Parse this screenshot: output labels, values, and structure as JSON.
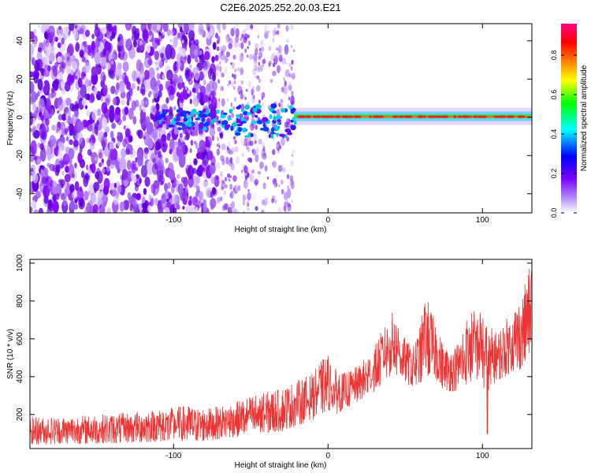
{
  "title": "C2E6.2025.252.20.03.E21",
  "chart_data": [
    {
      "type": "heatmap",
      "title": "C2E6.2025.252.20.03.E21",
      "xlabel": "Height of straight line (km)",
      "ylabel": "Frequency (Hz)",
      "xlim": [
        -193,
        132
      ],
      "ylim": [
        -50,
        49
      ],
      "x_ticks": [
        -100,
        0,
        100
      ],
      "x_tick_labels": [
        "-100",
        "0",
        "100"
      ],
      "y_ticks": [
        -40,
        -20,
        0,
        20,
        40
      ],
      "y_tick_labels": [
        "-40",
        "-20",
        "0",
        "20",
        "40"
      ],
      "colorbar": {
        "label": "Normalized spectral amplitude",
        "range": [
          0.0,
          0.96
        ],
        "ticks": [
          0.0,
          0.2,
          0.4,
          0.6,
          0.8
        ],
        "tick_labels": [
          "0.0",
          "0.2",
          "0.4",
          "0.6",
          "0.8"
        ],
        "colors": [
          "#ffffff",
          "#8000ff",
          "#0000ff",
          "#00ffff",
          "#00ff00",
          "#ffff00",
          "#ff8000",
          "#ff0000",
          "#ff00a0"
        ]
      },
      "regions": [
        {
          "x0": -193,
          "x1": -72,
          "f0": -50,
          "f1": 49,
          "amplitude": 0.12,
          "desc": "dense broadband noise"
        },
        {
          "x0": -72,
          "x1": -22,
          "f0": -50,
          "f1": 49,
          "amplitude": 0.06,
          "desc": "sparse broadband noise"
        },
        {
          "x0": -22,
          "x1": 132,
          "f0": -2,
          "f1": 3,
          "amplitude": 0.55,
          "desc": "narrow signal band"
        },
        {
          "x0": -20,
          "x1": 132,
          "f0": 0,
          "f1": 0.5,
          "amplitude": 0.9,
          "desc": "peak line near 0 Hz"
        }
      ]
    },
    {
      "type": "line",
      "xlabel": "Height of straight line (km)",
      "ylabel": "SNR (10 * v/v)",
      "xlim": [
        -193,
        132
      ],
      "ylim": [
        20,
        1020
      ],
      "x_ticks": [
        -100,
        0,
        100
      ],
      "x_tick_labels": [
        "-100",
        "0",
        "100"
      ],
      "y_ticks": [
        200,
        400,
        600,
        800,
        1000
      ],
      "y_tick_labels": [
        "200",
        "400",
        "600",
        "800",
        "1000"
      ],
      "color": "#ee3333",
      "series": [
        {
          "name": "SNR envelope",
          "x": [
            -193,
            -170,
            -150,
            -130,
            -110,
            -100,
            -90,
            -80,
            -70,
            -60,
            -50,
            -40,
            -30,
            -20,
            -10,
            -5,
            0,
            5,
            10,
            20,
            30,
            35,
            40,
            43,
            45,
            50,
            55,
            60,
            63,
            65,
            70,
            75,
            80,
            85,
            90,
            95,
            100,
            103,
            106,
            110,
            115,
            120,
            125,
            130,
            132
          ],
          "lo": [
            40,
            45,
            45,
            50,
            55,
            55,
            60,
            60,
            70,
            80,
            90,
            100,
            110,
            140,
            170,
            200,
            220,
            200,
            220,
            270,
            320,
            360,
            400,
            420,
            400,
            360,
            340,
            360,
            390,
            400,
            380,
            330,
            320,
            330,
            360,
            380,
            390,
            60,
            350,
            380,
            400,
            420,
            440,
            500,
            560
          ],
          "hi": [
            190,
            190,
            200,
            210,
            230,
            240,
            250,
            235,
            245,
            265,
            300,
            320,
            340,
            380,
            420,
            480,
            520,
            440,
            420,
            460,
            560,
            650,
            720,
            760,
            700,
            600,
            560,
            680,
            860,
            800,
            680,
            560,
            540,
            600,
            720,
            760,
            760,
            700,
            660,
            640,
            700,
            760,
            820,
            960,
            1030
          ]
        }
      ]
    }
  ]
}
